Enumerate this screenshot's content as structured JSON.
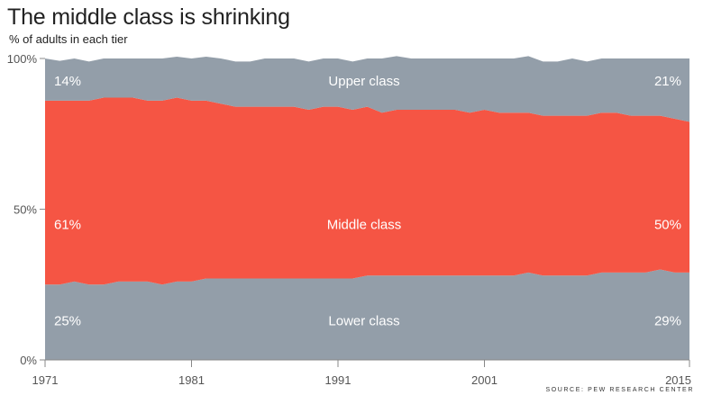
{
  "title": "The middle class is shrinking",
  "subtitle": "% of adults in each tier",
  "source": "SOURCE: PEW RESEARCH CENTER",
  "chart_data": {
    "type": "area",
    "stacked": true,
    "x": [
      1971,
      1972,
      1973,
      1974,
      1975,
      1976,
      1977,
      1978,
      1979,
      1980,
      1981,
      1982,
      1983,
      1984,
      1985,
      1986,
      1987,
      1988,
      1989,
      1990,
      1991,
      1992,
      1993,
      1994,
      1995,
      1996,
      1997,
      1998,
      1999,
      2000,
      2001,
      2002,
      2003,
      2004,
      2005,
      2006,
      2007,
      2008,
      2009,
      2010,
      2011,
      2012,
      2013,
      2014,
      2015
    ],
    "series": [
      {
        "name": "Lower class",
        "color": "#939ea9",
        "values": [
          25,
          25,
          26,
          25,
          25,
          26,
          26,
          26,
          25,
          26,
          26,
          27,
          27,
          27,
          27,
          27,
          27,
          27,
          27,
          27,
          27,
          27,
          28,
          28,
          28,
          28,
          28,
          28,
          28,
          28,
          28,
          28,
          28,
          29,
          28,
          28,
          28,
          28,
          29,
          29,
          29,
          29,
          30,
          29,
          29
        ]
      },
      {
        "name": "Middle class",
        "color": "#f55544",
        "values": [
          61,
          61,
          60,
          61,
          62,
          61,
          61,
          60,
          61,
          61,
          60,
          59,
          58,
          57,
          57,
          57,
          57,
          57,
          56,
          57,
          57,
          56,
          56,
          54,
          55,
          55,
          55,
          55,
          55,
          54,
          55,
          54,
          54,
          53,
          53,
          53,
          53,
          53,
          53,
          53,
          52,
          52,
          51,
          51,
          50
        ]
      },
      {
        "name": "Upper class",
        "color": "#939ea9",
        "values": [
          14,
          14,
          14,
          14,
          13,
          13,
          13,
          14,
          14,
          13,
          14,
          14,
          15,
          16,
          16,
          16,
          16,
          16,
          17,
          16,
          16,
          17,
          16,
          18,
          17,
          17,
          17,
          17,
          17,
          18,
          17,
          18,
          18,
          18,
          19,
          19,
          19,
          19,
          18,
          18,
          19,
          19,
          19,
          20,
          21
        ]
      }
    ],
    "top_edge": [
      100,
      99.2,
      100,
      99,
      100,
      100,
      100,
      100,
      100,
      100.6,
      100,
      100.6,
      100,
      99,
      99,
      100,
      100,
      100,
      99,
      100,
      100,
      99,
      100,
      100,
      100.8,
      100,
      100,
      100,
      100,
      100,
      100,
      100,
      100,
      100.8,
      99,
      99,
      100,
      99,
      100,
      100,
      100,
      100,
      100,
      100,
      100
    ],
    "labels": {
      "lower": {
        "name": "Lower class",
        "start": "25%",
        "end": "29%"
      },
      "middle": {
        "name": "Middle class",
        "start": "61%",
        "end": "50%"
      },
      "upper": {
        "name": "Upper class",
        "start": "14%",
        "end": "21%"
      }
    },
    "ylim": [
      0,
      100
    ],
    "yticks": [
      {
        "value": 0,
        "label": "0%"
      },
      {
        "value": 50,
        "label": "50%"
      },
      {
        "value": 100,
        "label": "100%"
      }
    ],
    "xticks": [
      {
        "value": 1971,
        "label": "1971"
      },
      {
        "value": 1981,
        "label": "1981"
      },
      {
        "value": 1991,
        "label": "1991"
      },
      {
        "value": 2001,
        "label": "2001"
      },
      {
        "value": 2015,
        "label": "2015"
      }
    ],
    "grid": false,
    "legend": "none"
  }
}
